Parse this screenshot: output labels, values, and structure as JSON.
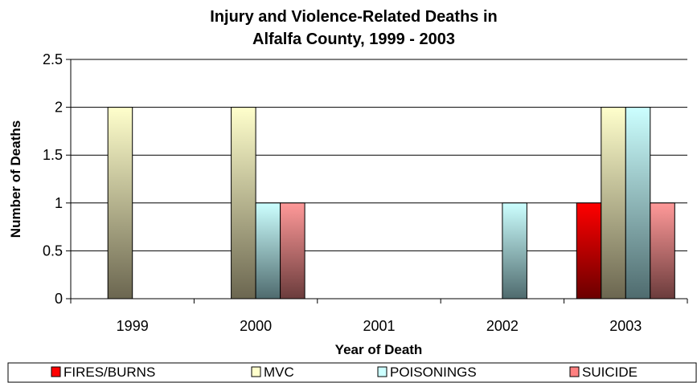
{
  "chart_data": {
    "type": "bar",
    "title_lines": [
      "Injury and Violence-Related Deaths in",
      "Alfalfa County, 1999 - 2003"
    ],
    "xlabel": "Year of Death",
    "ylabel": "Number of Deaths",
    "categories": [
      "1999",
      "2000",
      "2001",
      "2002",
      "2003"
    ],
    "ylim": [
      0,
      2.5
    ],
    "yticks": [
      "0",
      "0.5",
      "1",
      "1.5",
      "2",
      "2.5"
    ],
    "grid": true,
    "legend_position": "bottom",
    "series": [
      {
        "name": "FIRES/BURNS",
        "values": [
          0,
          0,
          0,
          0,
          1
        ],
        "color_top": "#ff0000",
        "color_bottom": "#6b0000",
        "swatch": "#ff0000"
      },
      {
        "name": "MVC",
        "values": [
          2,
          2,
          0,
          0,
          2
        ],
        "color_top": "#ffffcc",
        "color_bottom": "#6b6650",
        "swatch": "#ffffcc"
      },
      {
        "name": "POISONINGS",
        "values": [
          0,
          1,
          0,
          1,
          2
        ],
        "color_top": "#ccffff",
        "color_bottom": "#4f6b6e",
        "swatch": "#ccffff"
      },
      {
        "name": "SUICIDE",
        "values": [
          0,
          1,
          0,
          0,
          1
        ],
        "color_top": "#ff9999",
        "color_bottom": "#6b3c3c",
        "swatch": "#ff8080"
      }
    ]
  }
}
